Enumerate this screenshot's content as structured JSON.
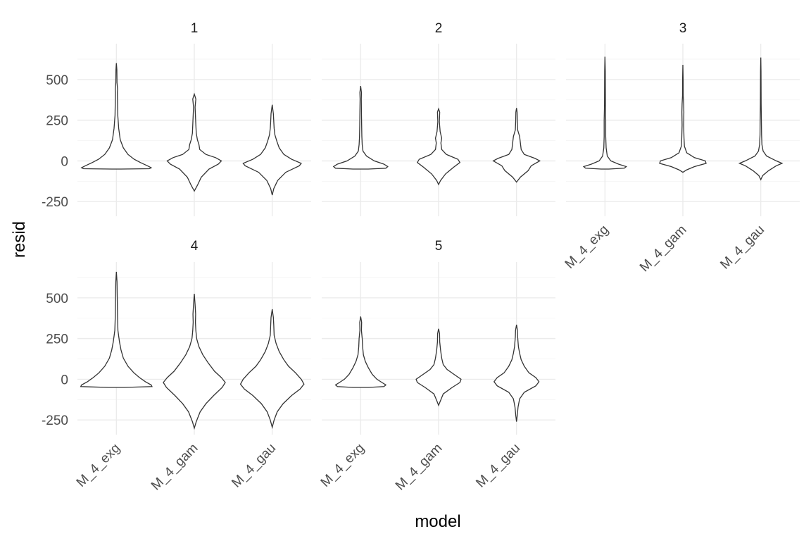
{
  "chart_data": {
    "type": "violin",
    "facet_label": "",
    "xlabel": "model",
    "ylabel": "resid",
    "categories": [
      "M_4_exg",
      "M_4_gam",
      "M_4_gau"
    ],
    "yticks": [
      -250,
      0,
      250,
      500
    ],
    "ylim": [
      -340,
      720
    ],
    "panels": [
      {
        "label": "1",
        "violins": [
          {
            "model": "M_4_exg",
            "min": -50,
            "max": 600,
            "widths": [
              [
                -50,
                0.12
              ],
              [
                -48,
                0.85
              ],
              [
                -42,
                0.9
              ],
              [
                -30,
                0.8
              ],
              [
                -10,
                0.62
              ],
              [
                10,
                0.46
              ],
              [
                40,
                0.3
              ],
              [
                80,
                0.18
              ],
              [
                130,
                0.1
              ],
              [
                200,
                0.06
              ],
              [
                280,
                0.035
              ],
              [
                350,
                0.03
              ],
              [
                420,
                0.025
              ],
              [
                440,
                0.03
              ],
              [
                480,
                0.015
              ],
              [
                560,
                0.012
              ],
              [
                600,
                0
              ]
            ]
          },
          {
            "model": "M_4_gam",
            "min": -185,
            "max": 410,
            "widths": [
              [
                -185,
                0
              ],
              [
                -150,
                0.08
              ],
              [
                -100,
                0.18
              ],
              [
                -50,
                0.38
              ],
              [
                -20,
                0.62
              ],
              [
                0,
                0.7
              ],
              [
                20,
                0.55
              ],
              [
                40,
                0.3
              ],
              [
                70,
                0.14
              ],
              [
                100,
                0.12
              ],
              [
                130,
                0.08
              ],
              [
                170,
                0.05
              ],
              [
                220,
                0.04
              ],
              [
                280,
                0.03
              ],
              [
                330,
                0.02
              ],
              [
                380,
                0.04
              ],
              [
                410,
                0
              ]
            ]
          },
          {
            "model": "M_4_gau",
            "min": -210,
            "max": 345,
            "widths": [
              [
                -210,
                0
              ],
              [
                -170,
                0.04
              ],
              [
                -120,
                0.14
              ],
              [
                -70,
                0.35
              ],
              [
                -30,
                0.7
              ],
              [
                -15,
                0.75
              ],
              [
                10,
                0.5
              ],
              [
                40,
                0.3
              ],
              [
                80,
                0.18
              ],
              [
                120,
                0.12
              ],
              [
                160,
                0.07
              ],
              [
                200,
                0.05
              ],
              [
                240,
                0.04
              ],
              [
                290,
                0.03
              ],
              [
                345,
                0
              ]
            ]
          }
        ]
      },
      {
        "label": "2",
        "violins": [
          {
            "model": "M_4_exg",
            "min": -50,
            "max": 460,
            "widths": [
              [
                -50,
                0.2
              ],
              [
                -45,
                0.65
              ],
              [
                -35,
                0.7
              ],
              [
                -20,
                0.6
              ],
              [
                0,
                0.35
              ],
              [
                30,
                0.15
              ],
              [
                60,
                0.06
              ],
              [
                100,
                0.04
              ],
              [
                150,
                0.03
              ],
              [
                220,
                0.025
              ],
              [
                300,
                0.02
              ],
              [
                380,
                0.015
              ],
              [
                420,
                0.02
              ],
              [
                460,
                0
              ]
            ]
          },
          {
            "model": "M_4_gam",
            "min": -145,
            "max": 320,
            "widths": [
              [
                -145,
                0
              ],
              [
                -120,
                0.05
              ],
              [
                -80,
                0.18
              ],
              [
                -40,
                0.38
              ],
              [
                -10,
                0.55
              ],
              [
                10,
                0.5
              ],
              [
                40,
                0.2
              ],
              [
                70,
                0.08
              ],
              [
                110,
                0.06
              ],
              [
                140,
                0.08
              ],
              [
                180,
                0.04
              ],
              [
                240,
                0.02
              ],
              [
                300,
                0.03
              ],
              [
                320,
                0
              ]
            ]
          },
          {
            "model": "M_4_gau",
            "min": -130,
            "max": 325,
            "widths": [
              [
                -130,
                0
              ],
              [
                -100,
                0.1
              ],
              [
                -60,
                0.3
              ],
              [
                -30,
                0.38
              ],
              [
                0,
                0.6
              ],
              [
                15,
                0.48
              ],
              [
                40,
                0.2
              ],
              [
                70,
                0.12
              ],
              [
                110,
                0.1
              ],
              [
                150,
                0.08
              ],
              [
                190,
                0.03
              ],
              [
                250,
                0.02
              ],
              [
                300,
                0.015
              ],
              [
                325,
                0
              ]
            ]
          }
        ]
      },
      {
        "label": "3",
        "violins": [
          {
            "model": "M_4_exg",
            "min": -50,
            "max": 640,
            "widths": [
              [
                -50,
                0.1
              ],
              [
                -45,
                0.5
              ],
              [
                -35,
                0.55
              ],
              [
                -20,
                0.35
              ],
              [
                0,
                0.15
              ],
              [
                30,
                0.06
              ],
              [
                80,
                0.03
              ],
              [
                150,
                0.02
              ],
              [
                250,
                0.02
              ],
              [
                350,
                0.012
              ],
              [
                450,
                0.01
              ],
              [
                550,
                0.008
              ],
              [
                640,
                0
              ]
            ]
          },
          {
            "model": "M_4_gam",
            "min": -70,
            "max": 590,
            "widths": [
              [
                -70,
                0
              ],
              [
                -55,
                0.1
              ],
              [
                -35,
                0.3
              ],
              [
                -15,
                0.6
              ],
              [
                0,
                0.58
              ],
              [
                20,
                0.3
              ],
              [
                50,
                0.1
              ],
              [
                90,
                0.04
              ],
              [
                140,
                0.03
              ],
              [
                220,
                0.02
              ],
              [
                300,
                0.025
              ],
              [
                350,
                0.02
              ],
              [
                400,
                0.01
              ],
              [
                500,
                0.008
              ],
              [
                590,
                0
              ]
            ]
          },
          {
            "model": "M_4_gau",
            "min": -115,
            "max": 635,
            "widths": [
              [
                -115,
                0
              ],
              [
                -90,
                0.05
              ],
              [
                -60,
                0.2
              ],
              [
                -30,
                0.4
              ],
              [
                -15,
                0.55
              ],
              [
                0,
                0.4
              ],
              [
                30,
                0.15
              ],
              [
                60,
                0.06
              ],
              [
                100,
                0.03
              ],
              [
                160,
                0.02
              ],
              [
                250,
                0.015
              ],
              [
                350,
                0.01
              ],
              [
                450,
                0.008
              ],
              [
                550,
                0.006
              ],
              [
                635,
                0
              ]
            ]
          }
        ]
      },
      {
        "label": "4",
        "violins": [
          {
            "model": "M_4_exg",
            "min": -50,
            "max": 660,
            "widths": [
              [
                -50,
                0.2
              ],
              [
                -45,
                0.92
              ],
              [
                -35,
                0.9
              ],
              [
                -15,
                0.75
              ],
              [
                10,
                0.6
              ],
              [
                40,
                0.45
              ],
              [
                80,
                0.3
              ],
              [
                130,
                0.18
              ],
              [
                180,
                0.12
              ],
              [
                230,
                0.08
              ],
              [
                300,
                0.04
              ],
              [
                380,
                0.03
              ],
              [
                460,
                0.025
              ],
              [
                540,
                0.02
              ],
              [
                600,
                0.015
              ],
              [
                660,
                0
              ]
            ]
          },
          {
            "model": "M_4_gam",
            "min": -300,
            "max": 525,
            "widths": [
              [
                -300,
                0
              ],
              [
                -260,
                0.05
              ],
              [
                -200,
                0.15
              ],
              [
                -150,
                0.3
              ],
              [
                -100,
                0.5
              ],
              [
                -50,
                0.72
              ],
              [
                -20,
                0.8
              ],
              [
                10,
                0.7
              ],
              [
                50,
                0.52
              ],
              [
                100,
                0.36
              ],
              [
                150,
                0.22
              ],
              [
                200,
                0.12
              ],
              [
                250,
                0.06
              ],
              [
                300,
                0.04
              ],
              [
                350,
                0.03
              ],
              [
                400,
                0.035
              ],
              [
                460,
                0.02
              ],
              [
                525,
                0
              ]
            ]
          },
          {
            "model": "M_4_gau",
            "min": -295,
            "max": 430,
            "widths": [
              [
                -295,
                0
              ],
              [
                -250,
                0.05
              ],
              [
                -200,
                0.13
              ],
              [
                -150,
                0.28
              ],
              [
                -100,
                0.5
              ],
              [
                -60,
                0.72
              ],
              [
                -30,
                0.82
              ],
              [
                0,
                0.75
              ],
              [
                40,
                0.6
              ],
              [
                80,
                0.42
              ],
              [
                120,
                0.3
              ],
              [
                170,
                0.18
              ],
              [
                220,
                0.1
              ],
              [
                270,
                0.05
              ],
              [
                330,
                0.04
              ],
              [
                380,
                0.03
              ],
              [
                430,
                0
              ]
            ]
          }
        ]
      },
      {
        "label": "5",
        "violins": [
          {
            "model": "M_4_exg",
            "min": -50,
            "max": 385,
            "widths": [
              [
                -50,
                0.2
              ],
              [
                -45,
                0.6
              ],
              [
                -35,
                0.65
              ],
              [
                -20,
                0.55
              ],
              [
                0,
                0.42
              ],
              [
                30,
                0.3
              ],
              [
                70,
                0.2
              ],
              [
                110,
                0.12
              ],
              [
                150,
                0.07
              ],
              [
                200,
                0.05
              ],
              [
                250,
                0.04
              ],
              [
                300,
                0.02
              ],
              [
                350,
                0.025
              ],
              [
                385,
                0
              ]
            ]
          },
          {
            "model": "M_4_gam",
            "min": -160,
            "max": 310,
            "widths": [
              [
                -160,
                0
              ],
              [
                -130,
                0.05
              ],
              [
                -90,
                0.12
              ],
              [
                -50,
                0.35
              ],
              [
                -20,
                0.55
              ],
              [
                0,
                0.58
              ],
              [
                30,
                0.4
              ],
              [
                60,
                0.22
              ],
              [
                90,
                0.12
              ],
              [
                130,
                0.08
              ],
              [
                180,
                0.05
              ],
              [
                230,
                0.03
              ],
              [
                280,
                0.025
              ],
              [
                310,
                0
              ]
            ]
          },
          {
            "model": "M_4_gau",
            "min": -260,
            "max": 335,
            "widths": [
              [
                -260,
                0
              ],
              [
                -220,
                0.02
              ],
              [
                -170,
                0.04
              ],
              [
                -120,
                0.08
              ],
              [
                -80,
                0.2
              ],
              [
                -40,
                0.5
              ],
              [
                -15,
                0.58
              ],
              [
                10,
                0.5
              ],
              [
                40,
                0.32
              ],
              [
                80,
                0.2
              ],
              [
                120,
                0.12
              ],
              [
                160,
                0.08
              ],
              [
                200,
                0.05
              ],
              [
                260,
                0.03
              ],
              [
                300,
                0.025
              ],
              [
                335,
                0
              ]
            ]
          }
        ]
      }
    ]
  }
}
